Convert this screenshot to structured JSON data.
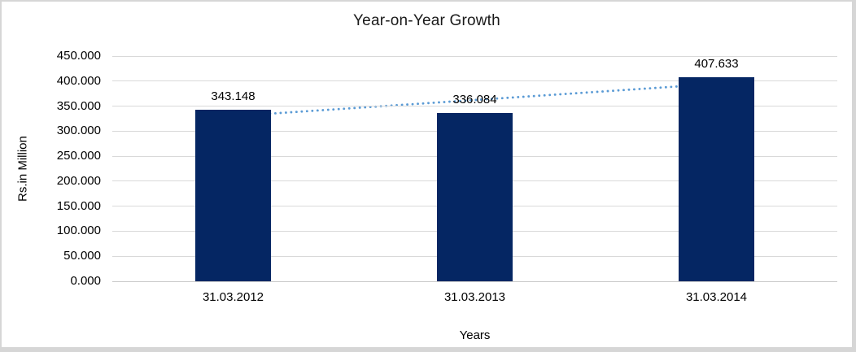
{
  "chart_data": {
    "type": "bar",
    "title": "Year-on-Year Growth",
    "xlabel": "Years",
    "ylabel": "Rs.in Million",
    "categories": [
      "31.03.2012",
      "31.03.2013",
      "31.03.2014"
    ],
    "values": [
      343.148,
      336.084,
      407.633
    ],
    "data_labels": [
      "343.148",
      "336.084",
      "407.633"
    ],
    "ylim": [
      0,
      450
    ],
    "ytick_step": 50,
    "ytick_labels": [
      "0.000",
      "50.000",
      "100.000",
      "150.000",
      "200.000",
      "250.000",
      "300.000",
      "350.000",
      "400.000",
      "450.000"
    ],
    "grid": true,
    "legend_position": "none",
    "bar_color": "#052663",
    "trendline": {
      "type": "linear",
      "style": "dotted",
      "color": "#5b9bd5"
    },
    "gridline_color": "#d9d9d9",
    "axis_line_color": "#c9c9c9"
  }
}
